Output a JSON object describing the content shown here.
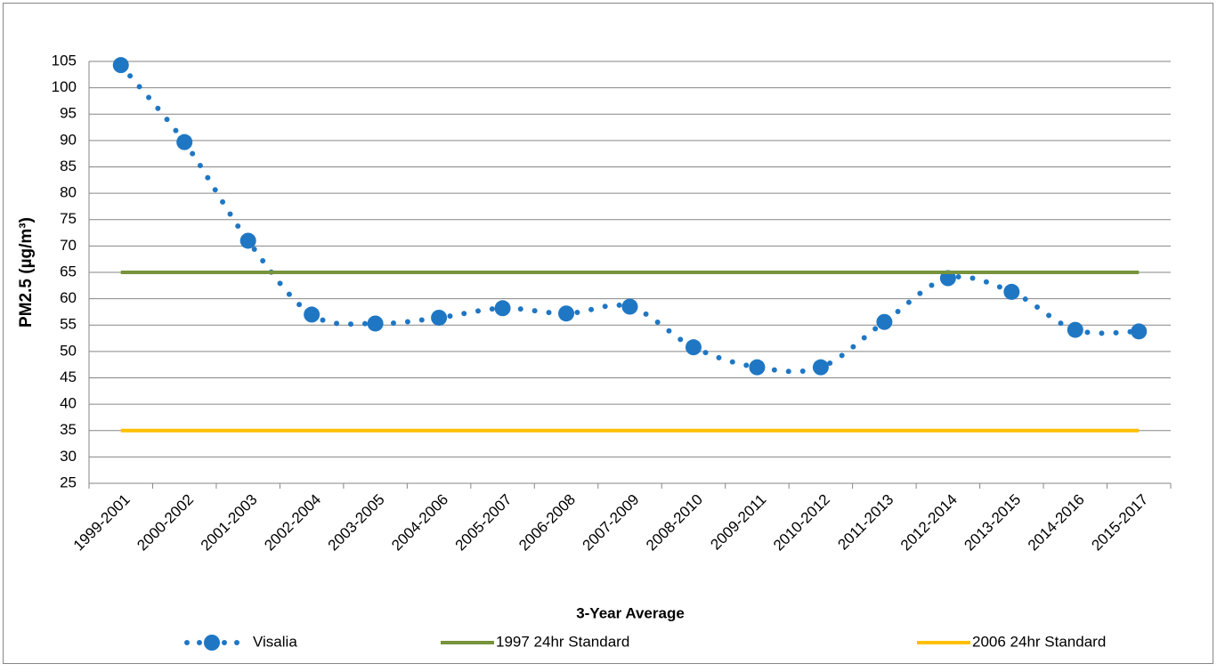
{
  "chart_data": {
    "type": "line",
    "x_label": "3-Year Average",
    "y_label": "PM2.5 (µg/m³)",
    "categories": [
      "1999-2001",
      "2000-2002",
      "2001-2003",
      "2002-2004",
      "2003-2005",
      "2004-2006",
      "2005-2007",
      "2006-2008",
      "2007-2009",
      "2008-2010",
      "2009-2011",
      "2010-2012",
      "2011-2013",
      "2012-2014",
      "2013-2015",
      "2014-2016",
      "2015-2017"
    ],
    "series": [
      {
        "name": "Visalia",
        "color": "#1f77c4",
        "style": "dotted-markers",
        "values": [
          104.3,
          89.7,
          71.0,
          57.0,
          55.3,
          56.4,
          58.2,
          57.2,
          58.5,
          50.8,
          47.0,
          47.0,
          55.6,
          63.9,
          61.3,
          54.1,
          53.8
        ]
      },
      {
        "name": "1997 24hr Standard",
        "color": "#77933c",
        "style": "solid",
        "values": [
          65,
          65,
          65,
          65,
          65,
          65,
          65,
          65,
          65,
          65,
          65,
          65,
          65,
          65,
          65,
          65,
          65
        ]
      },
      {
        "name": "2006 24hr Standard",
        "color": "#ffc000",
        "style": "solid",
        "values": [
          35,
          35,
          35,
          35,
          35,
          35,
          35,
          35,
          35,
          35,
          35,
          35,
          35,
          35,
          35,
          35,
          35
        ]
      }
    ],
    "ylim": [
      25,
      105
    ],
    "yticks": [
      25,
      30,
      35,
      40,
      45,
      50,
      55,
      60,
      65,
      70,
      75,
      80,
      85,
      90,
      95,
      100,
      105
    ],
    "grid": true,
    "legend": "bottom"
  }
}
